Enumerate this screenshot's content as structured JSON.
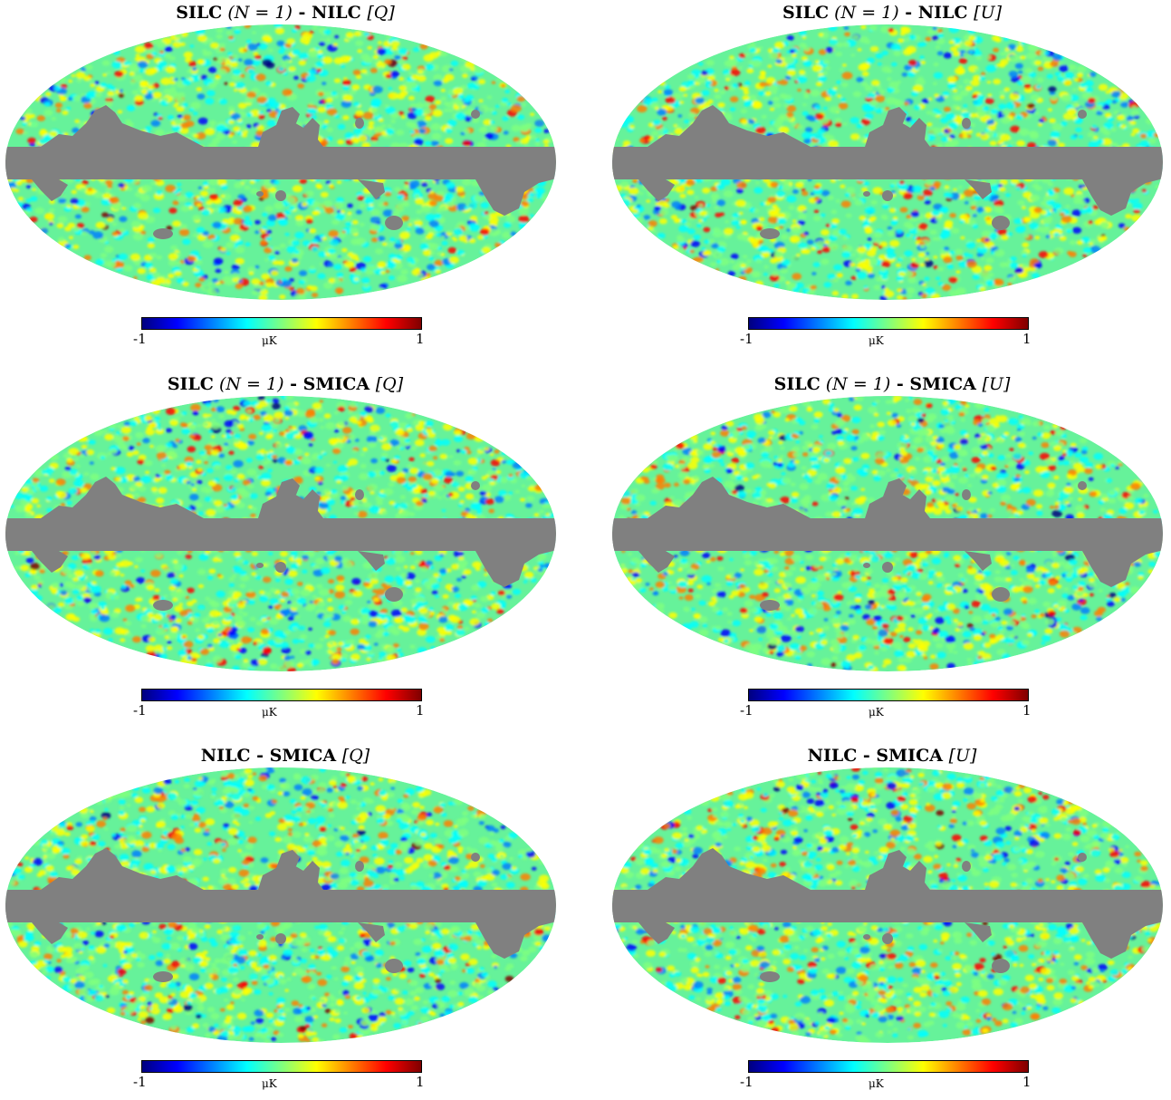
{
  "panels": [
    {
      "id": "silc-nilc-q",
      "title_prefix": "SILC",
      "title_math": "(N = 1)",
      "title_suffix": " - NILC ",
      "title_stokes": "[Q]",
      "seed": 11,
      "colorbar": {
        "min": "-1",
        "max": "1",
        "unit": "μK"
      }
    },
    {
      "id": "silc-nilc-u",
      "title_prefix": "SILC",
      "title_math": "(N = 1)",
      "title_suffix": " - NILC ",
      "title_stokes": "[U]",
      "seed": 23,
      "colorbar": {
        "min": "-1",
        "max": "1",
        "unit": "μK"
      }
    },
    {
      "id": "silc-smica-q",
      "title_prefix": "SILC",
      "title_math": "(N = 1)",
      "title_suffix": " - SMICA ",
      "title_stokes": "[Q]",
      "seed": 37,
      "colorbar": {
        "min": "-1",
        "max": "1",
        "unit": "μK"
      }
    },
    {
      "id": "silc-smica-u",
      "title_prefix": "SILC",
      "title_math": "(N = 1)",
      "title_suffix": " - SMICA ",
      "title_stokes": "[U]",
      "seed": 41,
      "colorbar": {
        "min": "-1",
        "max": "1",
        "unit": "μK"
      }
    },
    {
      "id": "nilc-smica-q",
      "title_prefix": "NILC - SMICA ",
      "title_math": "",
      "title_suffix": "",
      "title_stokes": "[Q]",
      "seed": 53,
      "colorbar": {
        "min": "-1",
        "max": "1",
        "unit": "μK"
      }
    },
    {
      "id": "nilc-smica-u",
      "title_prefix": "NILC - SMICA ",
      "title_math": "",
      "title_suffix": "",
      "title_stokes": "[U]",
      "seed": 67,
      "colorbar": {
        "min": "-1",
        "max": "1",
        "unit": "μK"
      }
    }
  ],
  "colors": {
    "mask": "#808080",
    "colormap": [
      "#00007f",
      "#0000ff",
      "#007fff",
      "#00ffff",
      "#7fff7f",
      "#ffff00",
      "#ff7f00",
      "#ff0000",
      "#7f0000"
    ]
  }
}
